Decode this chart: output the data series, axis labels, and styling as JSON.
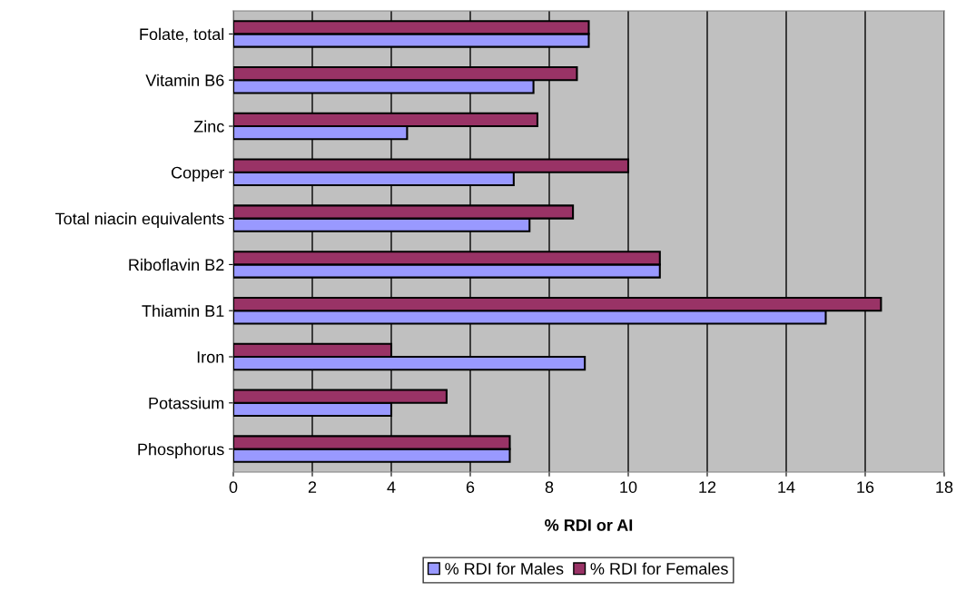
{
  "chart_data": {
    "type": "bar",
    "orientation": "horizontal",
    "xlabel": "% RDI or AI",
    "categories": [
      "Folate, total",
      "Vitamin B6",
      "Zinc",
      "Copper",
      "Total niacin equivalents",
      "Riboflavin B2",
      "Thiamin B1",
      "Iron",
      "Potassium",
      "Phosphorus"
    ],
    "series": [
      {
        "name": "% RDI for Males",
        "color": "#9999ff",
        "values": [
          9.0,
          7.6,
          4.4,
          7.1,
          7.5,
          10.8,
          15.0,
          8.9,
          4.0,
          7.0
        ]
      },
      {
        "name": "% RDI for Females",
        "color": "#993366",
        "values": [
          9.0,
          8.7,
          7.7,
          10.0,
          8.6,
          10.8,
          16.4,
          4.0,
          5.4,
          7.0
        ]
      }
    ],
    "xlim": [
      0,
      18
    ],
    "xticks": [
      0,
      2,
      4,
      6,
      8,
      10,
      12,
      14,
      16,
      18
    ],
    "grid": "x",
    "legend": "bottom"
  }
}
